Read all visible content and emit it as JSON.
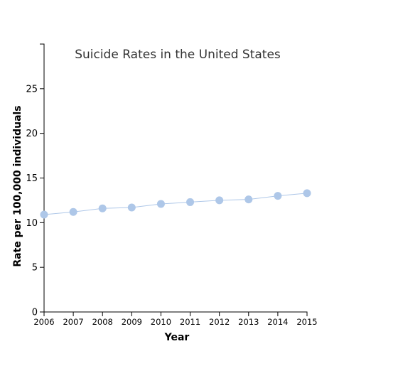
{
  "chart_data": {
    "type": "line",
    "title": "Suicide Rates in the United States",
    "xlabel": "Year",
    "ylabel": "Rate per 100,000 individuals",
    "x": [
      "2006",
      "2007",
      "2008",
      "2009",
      "2010",
      "2011",
      "2012",
      "2013",
      "2014",
      "2015"
    ],
    "series": [
      {
        "values": [
          10.9,
          11.2,
          11.6,
          11.7,
          12.1,
          12.3,
          12.5,
          12.6,
          13.0,
          13.3
        ],
        "color": "#aec7e8"
      }
    ],
    "ylim": [
      0,
      30
    ],
    "yticks": [
      "0",
      "5",
      "10",
      "15",
      "20",
      "25"
    ],
    "grid": false,
    "legend": "none",
    "colors": {
      "series": "#aec7e8",
      "axis": "#000000",
      "title": "#333333"
    }
  }
}
